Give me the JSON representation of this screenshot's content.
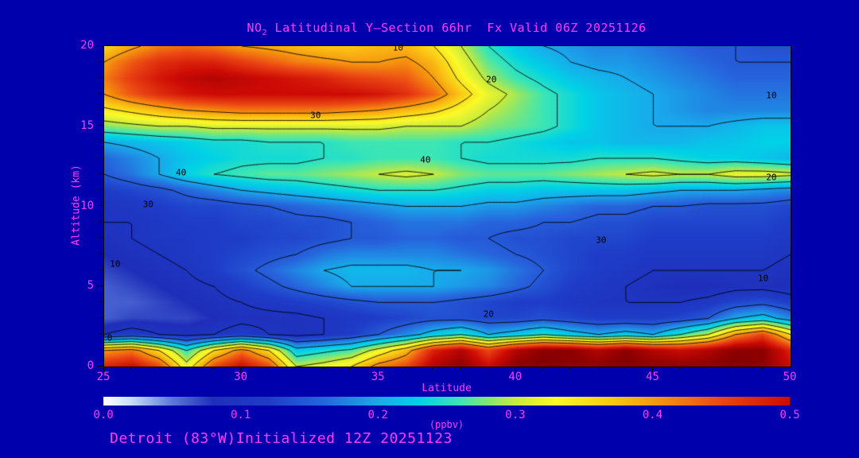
{
  "title": {
    "prefix": "NO",
    "sub": "2",
    "rest": " Latitudinal Y–Section 66hr  Fx Valid 06Z 20251126"
  },
  "footer": {
    "text": "Detroit (83°W)Initialized 12Z 20251123"
  },
  "axes": {
    "x": {
      "label": "Latitude",
      "min": 25,
      "max": 50,
      "ticks": [
        25,
        30,
        35,
        40,
        45,
        50
      ],
      "minor_step": 1
    },
    "y": {
      "label": "Altitude (km)",
      "min": 0,
      "max": 20,
      "ticks": [
        0,
        5,
        10,
        15,
        20
      ],
      "minor_step": 1
    }
  },
  "colorbar": {
    "label": "(ppbv)",
    "min": 0.0,
    "max": 0.5,
    "tick_labels": [
      "0.0",
      "0.1",
      "0.2",
      "0.3",
      "0.4",
      "0.5"
    ]
  },
  "colors": {
    "background": "#0000ac",
    "text_magenta": "#ff3cff",
    "frame": "#000000",
    "contour_line": "#000000"
  },
  "chart_data": {
    "type": "heatmap",
    "title": "NO2 Latitudinal Y-Section 66hr Fx Valid 06Z 20251126",
    "xlabel": "Latitude",
    "ylabel": "Altitude (km)",
    "unit": "ppbv",
    "xlim": [
      25,
      50
    ],
    "ylim": [
      0,
      20
    ],
    "legend": "horizontal colorbar 0.0–0.5 ppbv",
    "grid": false,
    "x": [
      25,
      26,
      27,
      28,
      29,
      30,
      31,
      32,
      33,
      34,
      35,
      36,
      37,
      38,
      39,
      40,
      41,
      42,
      43,
      44,
      45,
      46,
      47,
      48,
      49,
      50
    ],
    "y": [
      0,
      1,
      2,
      3,
      4,
      5,
      6,
      7,
      8,
      9,
      10,
      11,
      12,
      13,
      14,
      15,
      16,
      17,
      18,
      19,
      20
    ],
    "values": [
      [
        0.48,
        0.5,
        0.45,
        0.32,
        0.45,
        0.5,
        0.45,
        0.3,
        0.32,
        0.35,
        0.42,
        0.45,
        0.52,
        0.55,
        0.5,
        0.55,
        0.56,
        0.55,
        0.55,
        0.56,
        0.55,
        0.55,
        0.55,
        0.56,
        0.55,
        0.5
      ],
      [
        0.4,
        0.42,
        0.35,
        0.25,
        0.35,
        0.42,
        0.35,
        0.22,
        0.24,
        0.26,
        0.32,
        0.38,
        0.48,
        0.52,
        0.45,
        0.52,
        0.55,
        0.55,
        0.52,
        0.55,
        0.52,
        0.5,
        0.52,
        0.55,
        0.55,
        0.48
      ],
      [
        0.1,
        0.12,
        0.1,
        0.09,
        0.1,
        0.12,
        0.1,
        0.09,
        0.1,
        0.12,
        0.15,
        0.18,
        0.22,
        0.25,
        0.2,
        0.22,
        0.25,
        0.22,
        0.2,
        0.22,
        0.2,
        0.25,
        0.3,
        0.4,
        0.45,
        0.35
      ],
      [
        0.06,
        0.07,
        0.07,
        0.07,
        0.08,
        0.09,
        0.09,
        0.09,
        0.1,
        0.11,
        0.12,
        0.13,
        0.14,
        0.14,
        0.13,
        0.13,
        0.14,
        0.13,
        0.12,
        0.12,
        0.12,
        0.13,
        0.15,
        0.2,
        0.22,
        0.18
      ],
      [
        0.06,
        0.06,
        0.07,
        0.08,
        0.09,
        0.1,
        0.11,
        0.12,
        0.13,
        0.14,
        0.15,
        0.15,
        0.15,
        0.14,
        0.13,
        0.12,
        0.12,
        0.11,
        0.1,
        0.1,
        0.1,
        0.1,
        0.11,
        0.13,
        0.14,
        0.12
      ],
      [
        0.06,
        0.07,
        0.08,
        0.09,
        0.1,
        0.12,
        0.14,
        0.16,
        0.18,
        0.2,
        0.2,
        0.2,
        0.2,
        0.19,
        0.18,
        0.16,
        0.14,
        0.12,
        0.11,
        0.1,
        0.09,
        0.08,
        0.08,
        0.09,
        0.09,
        0.08
      ],
      [
        0.07,
        0.08,
        0.09,
        0.1,
        0.12,
        0.14,
        0.16,
        0.18,
        0.2,
        0.21,
        0.21,
        0.21,
        0.2,
        0.2,
        0.19,
        0.17,
        0.15,
        0.13,
        0.12,
        0.11,
        0.1,
        0.1,
        0.1,
        0.1,
        0.1,
        0.09
      ],
      [
        0.08,
        0.09,
        0.1,
        0.11,
        0.12,
        0.13,
        0.14,
        0.15,
        0.17,
        0.18,
        0.18,
        0.18,
        0.18,
        0.17,
        0.16,
        0.15,
        0.14,
        0.13,
        0.12,
        0.12,
        0.11,
        0.11,
        0.11,
        0.11,
        0.11,
        0.1
      ],
      [
        0.09,
        0.1,
        0.11,
        0.11,
        0.12,
        0.12,
        0.13,
        0.13,
        0.14,
        0.15,
        0.15,
        0.16,
        0.16,
        0.15,
        0.15,
        0.14,
        0.14,
        0.13,
        0.13,
        0.13,
        0.12,
        0.12,
        0.12,
        0.12,
        0.12,
        0.11
      ],
      [
        0.1,
        0.1,
        0.11,
        0.12,
        0.12,
        0.13,
        0.13,
        0.14,
        0.14,
        0.15,
        0.16,
        0.17,
        0.17,
        0.17,
        0.16,
        0.16,
        0.15,
        0.15,
        0.14,
        0.14,
        0.13,
        0.13,
        0.13,
        0.13,
        0.13,
        0.12
      ],
      [
        0.1,
        0.11,
        0.12,
        0.13,
        0.13,
        0.14,
        0.15,
        0.16,
        0.17,
        0.18,
        0.19,
        0.2,
        0.2,
        0.2,
        0.19,
        0.19,
        0.18,
        0.17,
        0.16,
        0.16,
        0.15,
        0.15,
        0.14,
        0.14,
        0.14,
        0.13
      ],
      [
        0.12,
        0.13,
        0.14,
        0.16,
        0.18,
        0.2,
        0.21,
        0.22,
        0.23,
        0.24,
        0.25,
        0.25,
        0.25,
        0.24,
        0.23,
        0.23,
        0.22,
        0.22,
        0.22,
        0.22,
        0.21,
        0.2,
        0.2,
        0.2,
        0.19,
        0.18
      ],
      [
        0.15,
        0.17,
        0.2,
        0.23,
        0.25,
        0.26,
        0.27,
        0.27,
        0.28,
        0.29,
        0.3,
        0.31,
        0.3,
        0.28,
        0.27,
        0.27,
        0.27,
        0.28,
        0.29,
        0.3,
        0.31,
        0.3,
        0.3,
        0.32,
        0.32,
        0.31
      ],
      [
        0.16,
        0.18,
        0.2,
        0.22,
        0.23,
        0.24,
        0.24,
        0.24,
        0.25,
        0.25,
        0.26,
        0.26,
        0.26,
        0.25,
        0.24,
        0.24,
        0.24,
        0.24,
        0.25,
        0.25,
        0.25,
        0.24,
        0.23,
        0.23,
        0.22,
        0.21
      ],
      [
        0.2,
        0.21,
        0.22,
        0.23,
        0.24,
        0.24,
        0.25,
        0.25,
        0.25,
        0.26,
        0.26,
        0.26,
        0.26,
        0.25,
        0.25,
        0.24,
        0.23,
        0.22,
        0.22,
        0.21,
        0.21,
        0.21,
        0.22,
        0.22,
        0.23,
        0.23
      ],
      [
        0.28,
        0.29,
        0.3,
        0.3,
        0.31,
        0.31,
        0.31,
        0.31,
        0.31,
        0.31,
        0.31,
        0.3,
        0.3,
        0.3,
        0.28,
        0.27,
        0.26,
        0.24,
        0.22,
        0.21,
        0.2,
        0.2,
        0.2,
        0.21,
        0.22,
        0.22
      ],
      [
        0.34,
        0.36,
        0.38,
        0.4,
        0.41,
        0.42,
        0.42,
        0.42,
        0.42,
        0.41,
        0.4,
        0.38,
        0.36,
        0.33,
        0.3,
        0.28,
        0.26,
        0.24,
        0.22,
        0.21,
        0.2,
        0.19,
        0.18,
        0.18,
        0.18,
        0.18
      ],
      [
        0.4,
        0.44,
        0.47,
        0.49,
        0.5,
        0.5,
        0.5,
        0.5,
        0.5,
        0.5,
        0.49,
        0.47,
        0.43,
        0.37,
        0.32,
        0.29,
        0.26,
        0.24,
        0.22,
        0.21,
        0.2,
        0.19,
        0.18,
        0.17,
        0.17,
        0.17
      ],
      [
        0.42,
        0.46,
        0.49,
        0.51,
        0.52,
        0.51,
        0.5,
        0.49,
        0.48,
        0.46,
        0.45,
        0.44,
        0.4,
        0.34,
        0.29,
        0.26,
        0.24,
        0.22,
        0.21,
        0.2,
        0.19,
        0.18,
        0.17,
        0.16,
        0.16,
        0.16
      ],
      [
        0.4,
        0.44,
        0.47,
        0.48,
        0.48,
        0.46,
        0.44,
        0.42,
        0.41,
        0.4,
        0.4,
        0.41,
        0.38,
        0.32,
        0.27,
        0.24,
        0.22,
        0.2,
        0.19,
        0.19,
        0.18,
        0.17,
        0.16,
        0.15,
        0.15,
        0.15
      ],
      [
        0.36,
        0.39,
        0.42,
        0.43,
        0.42,
        0.4,
        0.39,
        0.38,
        0.37,
        0.37,
        0.38,
        0.38,
        0.35,
        0.3,
        0.25,
        0.22,
        0.2,
        0.19,
        0.18,
        0.18,
        0.17,
        0.16,
        0.15,
        0.15,
        0.14,
        0.14
      ]
    ],
    "contour_levels": [
      0.05,
      0.1,
      0.15,
      0.2,
      0.25,
      0.3,
      0.35,
      0.4
    ],
    "contour_labels": [
      {
        "text": "10",
        "lat": 35.7,
        "alt": 19.9
      },
      {
        "text": "20",
        "lat": 39.1,
        "alt": 17.9
      },
      {
        "text": "30",
        "lat": 32.7,
        "alt": 15.7
      },
      {
        "text": "10",
        "lat": 49.3,
        "alt": 16.9
      },
      {
        "text": "20",
        "lat": 49.3,
        "alt": 11.8
      },
      {
        "text": "40",
        "lat": 36.7,
        "alt": 12.9
      },
      {
        "text": "40",
        "lat": 27.8,
        "alt": 12.1
      },
      {
        "text": "30",
        "lat": 26.6,
        "alt": 10.1
      },
      {
        "text": "10",
        "lat": 25.4,
        "alt": 6.4
      },
      {
        "text": "30",
        "lat": 43.1,
        "alt": 7.9
      },
      {
        "text": "10",
        "lat": 49.0,
        "alt": 5.5
      },
      {
        "text": "20",
        "lat": 39.0,
        "alt": 3.3
      },
      {
        "text": "0",
        "lat": 25.2,
        "alt": 1.8
      }
    ],
    "colormap": [
      [
        0.0,
        "#ffffff"
      ],
      [
        0.02,
        "#c8e0f5"
      ],
      [
        0.05,
        "#5a78dc"
      ],
      [
        0.08,
        "#1e2eb9"
      ],
      [
        0.12,
        "#1e3cc8"
      ],
      [
        0.16,
        "#2764dc"
      ],
      [
        0.2,
        "#19aaeb"
      ],
      [
        0.23,
        "#00d2e6"
      ],
      [
        0.26,
        "#3ce6b4"
      ],
      [
        0.28,
        "#82e673"
      ],
      [
        0.3,
        "#c8eb3c"
      ],
      [
        0.33,
        "#fafa28"
      ],
      [
        0.37,
        "#fac814"
      ],
      [
        0.41,
        "#f58c0f"
      ],
      [
        0.45,
        "#eb4614"
      ],
      [
        0.5,
        "#cd0a05"
      ],
      [
        0.55,
        "#8c0000"
      ],
      [
        0.6,
        "#640000"
      ]
    ]
  }
}
